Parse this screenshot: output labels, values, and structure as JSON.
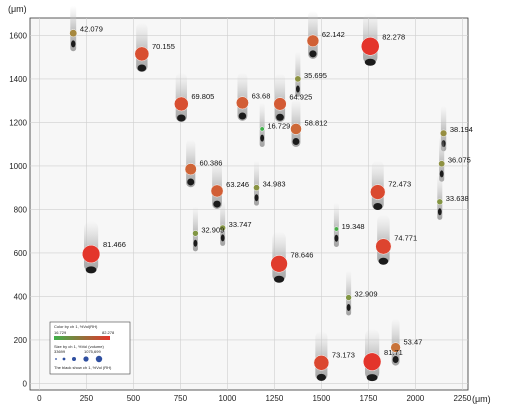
{
  "chart_data": {
    "type": "scatter",
    "title": "",
    "x_unit": "(μm)",
    "y_unit": "(μm)",
    "xlim": [
      -50,
      2280
    ],
    "ylim": [
      -30,
      1680
    ],
    "x_ticks": [
      0,
      250,
      500,
      750,
      1000,
      1250,
      1500,
      1750,
      2000,
      2250
    ],
    "y_ticks": [
      0,
      200,
      400,
      600,
      800,
      1000,
      1200,
      1400,
      1600
    ],
    "grid": true,
    "color_scale": {
      "min": 16.729,
      "max": 82.278,
      "low_color": "#3fb04a",
      "high_color": "#e4342b"
    },
    "points": [
      {
        "x": 180,
        "y": 1610,
        "value": 42.079
      },
      {
        "x": 545,
        "y": 1515,
        "value": 70.155
      },
      {
        "x": 1455,
        "y": 1575,
        "value": 62.142
      },
      {
        "x": 1760,
        "y": 1550,
        "value": 82.278
      },
      {
        "x": 1375,
        "y": 1400,
        "value": 35.695
      },
      {
        "x": 755,
        "y": 1285,
        "value": 69.805
      },
      {
        "x": 1080,
        "y": 1290,
        "value": 63.68
      },
      {
        "x": 1280,
        "y": 1285,
        "value": 64.925
      },
      {
        "x": 1185,
        "y": 1170,
        "value": 16.729
      },
      {
        "x": 1365,
        "y": 1170,
        "value": 58.812
      },
      {
        "x": 2150,
        "y": 1150,
        "value": 38.194
      },
      {
        "x": 805,
        "y": 985,
        "value": 60.386
      },
      {
        "x": 2140,
        "y": 1010,
        "value": 36.075
      },
      {
        "x": 945,
        "y": 885,
        "value": 63.246
      },
      {
        "x": 1155,
        "y": 900,
        "value": 34.983
      },
      {
        "x": 1800,
        "y": 880,
        "value": 72.473
      },
      {
        "x": 2130,
        "y": 835,
        "value": 33.638
      },
      {
        "x": 975,
        "y": 715,
        "value": 33.747
      },
      {
        "x": 830,
        "y": 690,
        "value": 32.909
      },
      {
        "x": 1580,
        "y": 710,
        "value": 19.348
      },
      {
        "x": 1830,
        "y": 630,
        "value": 74.771
      },
      {
        "x": 275,
        "y": 595,
        "value": 81.466
      },
      {
        "x": 1275,
        "y": 550,
        "value": 78.646
      },
      {
        "x": 1645,
        "y": 395,
        "value": 32.909
      },
      {
        "x": 1895,
        "y": 165,
        "value": 53.47
      },
      {
        "x": 1500,
        "y": 95,
        "value": 73.173
      },
      {
        "x": 1770,
        "y": 100,
        "value": 81.71
      }
    ],
    "legend": {
      "color_title": "Color by ch 1, %Vol(RH)",
      "size_title": "Size by ch 1, %Vol (volume)",
      "size_min": "33699",
      "size_max": "1075,699",
      "footnote": "The black show ch 1, %Vol (RH)",
      "placement": "bottom-left"
    }
  }
}
